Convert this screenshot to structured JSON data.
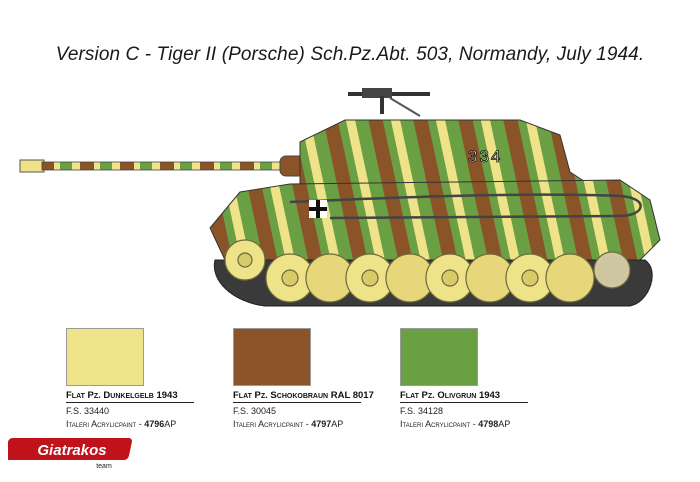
{
  "title": "Version C - Tiger II (Porsche) Sch.Pz.Abt. 503, Normandy, July 1944.",
  "tank": {
    "turret_number": "334"
  },
  "colors": [
    {
      "name": "Flat Pz. Dunkelgelb 1943",
      "fs": "F.S. 33440",
      "acrylic_label": "Italeri Acrylicpaint - ",
      "acrylic_code": "4796",
      "suffix": "AP",
      "hex": "#efe38a"
    },
    {
      "name": "Flat Pz. Schokobraun RAL 8017",
      "fs": "F.S. 30045",
      "acrylic_label": "Italeri Acrylicpaint - ",
      "acrylic_code": "4797",
      "suffix": "AP",
      "hex": "#8a5428"
    },
    {
      "name": "Flat Pz. Olivgrun 1943",
      "fs": "F.S. 34128",
      "acrylic_label": "Italeri Acrylicpaint - ",
      "acrylic_code": "4798",
      "suffix": "AP",
      "hex": "#6aa043"
    }
  ],
  "logo": {
    "brand": "Giatrakos",
    "sub": "team"
  }
}
